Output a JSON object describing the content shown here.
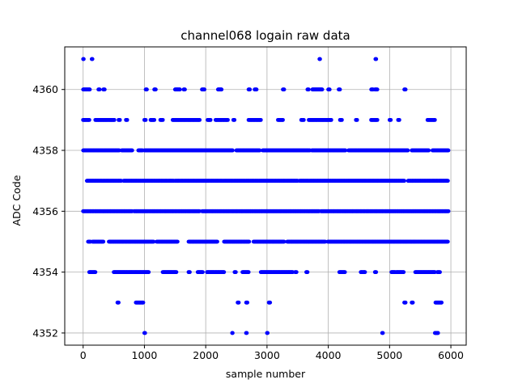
{
  "chart_data": {
    "type": "scatter",
    "title": "channel068 logain raw data",
    "xlabel": "sample number",
    "ylabel": "ADC Code",
    "xlim": [
      -300,
      6250
    ],
    "ylim": [
      4351.6,
      4361.4
    ],
    "xticks": [
      0,
      1000,
      2000,
      3000,
      4000,
      5000,
      6000
    ],
    "xtick_labels": [
      "0",
      "1000",
      "2000",
      "3000",
      "4000",
      "5000",
      "6000"
    ],
    "yticks": [
      4352,
      4354,
      4356,
      4358,
      4360
    ],
    "ytick_labels": [
      "4352",
      "4354",
      "4356",
      "4358",
      "4360"
    ],
    "grid": true,
    "marker_color": "#0000ff",
    "series": [
      {
        "rows": [
          {
            "y": 4361,
            "ranges": [
              [
                0,
                10
              ],
              [
                140,
                150
              ],
              [
                3855,
                3865
              ],
              [
                4770,
                4780
              ]
            ]
          },
          {
            "y": 4360,
            "ranges": [
              [
                0,
                110
              ],
              [
                250,
                270
              ],
              [
                330,
                350
              ],
              [
                1020,
                1040
              ],
              [
                1160,
                1185
              ],
              [
                1500,
                1580
              ],
              [
                1640,
                1660
              ],
              [
                1940,
                1980
              ],
              [
                2200,
                2260
              ],
              [
                2700,
                2720
              ],
              [
                2800,
                2830
              ],
              [
                3260,
                3280
              ],
              [
                3660,
                3680
              ],
              [
                3740,
                3900
              ],
              [
                4000,
                4020
              ],
              [
                4170,
                4190
              ],
              [
                4700,
                4730
              ],
              [
                4760,
                4800
              ],
              [
                5240,
                5260
              ]
            ]
          },
          {
            "y": 4359,
            "ranges": [
              [
                0,
                100
              ],
              [
                200,
                510
              ],
              [
                580,
                600
              ],
              [
                700,
                720
              ],
              [
                1000,
                1020
              ],
              [
                1100,
                1160
              ],
              [
                1260,
                1300
              ],
              [
                1460,
                1900
              ],
              [
                2030,
                2080
              ],
              [
                2160,
                2360
              ],
              [
                2450,
                2470
              ],
              [
                2700,
                2900
              ],
              [
                3180,
                3260
              ],
              [
                3560,
                3600
              ],
              [
                3680,
                4050
              ],
              [
                4190,
                4220
              ],
              [
                4450,
                4470
              ],
              [
                4700,
                4800
              ],
              [
                5000,
                5020
              ],
              [
                5140,
                5160
              ],
              [
                5620,
                5740
              ]
            ]
          },
          {
            "y": 4358,
            "ranges": [
              [
                0,
                590
              ],
              [
                630,
                800
              ],
              [
                900,
                970
              ],
              [
                1000,
                2440
              ],
              [
                2500,
                2880
              ],
              [
                2930,
                3700
              ],
              [
                3730,
                4280
              ],
              [
                4330,
                5300
              ],
              [
                5360,
                5640
              ],
              [
                5700,
                5960
              ]
            ]
          },
          {
            "y": 4357,
            "ranges": [
              [
                60,
                620
              ],
              [
                660,
                1480
              ],
              [
                1500,
                3500
              ],
              [
                3530,
                5240
              ],
              [
                5300,
                5950
              ]
            ]
          },
          {
            "y": 4356,
            "ranges": [
              [
                0,
                800
              ],
              [
                830,
                1900
              ],
              [
                1940,
                3850
              ],
              [
                3880,
                5960
              ]
            ]
          },
          {
            "y": 4355,
            "ranges": [
              [
                80,
                120
              ],
              [
                150,
                330
              ],
              [
                420,
                1150
              ],
              [
                1200,
                1540
              ],
              [
                1720,
                2190
              ],
              [
                2300,
                2710
              ],
              [
                2780,
                3280
              ],
              [
                3330,
                3950
              ],
              [
                3990,
                5950
              ]
            ]
          },
          {
            "y": 4354,
            "ranges": [
              [
                100,
                200
              ],
              [
                500,
                1070
              ],
              [
                1300,
                1520
              ],
              [
                1720,
                1740
              ],
              [
                1870,
                1950
              ],
              [
                2020,
                2300
              ],
              [
                2470,
                2490
              ],
              [
                2600,
                2700
              ],
              [
                2900,
                3420
              ],
              [
                3460,
                3480
              ],
              [
                3640,
                3660
              ],
              [
                4180,
                4270
              ],
              [
                4530,
                4600
              ],
              [
                4760,
                4780
              ],
              [
                5030,
                5090
              ],
              [
                5110,
                5230
              ],
              [
                5420,
                5740
              ],
              [
                5780,
                5820
              ]
            ]
          },
          {
            "y": 4353,
            "ranges": [
              [
                560,
                580
              ],
              [
                860,
                980
              ],
              [
                2520,
                2540
              ],
              [
                2660,
                2680
              ],
              [
                3030,
                3050
              ],
              [
                5240,
                5260
              ],
              [
                5360,
                5380
              ],
              [
                5750,
                5850
              ]
            ]
          },
          {
            "y": 4352,
            "ranges": [
              [
                1000,
                1010
              ],
              [
                2430,
                2440
              ],
              [
                2660,
                2670
              ],
              [
                3000,
                3010
              ],
              [
                4880,
                4890
              ],
              [
                5740,
                5790
              ]
            ]
          }
        ]
      }
    ]
  }
}
